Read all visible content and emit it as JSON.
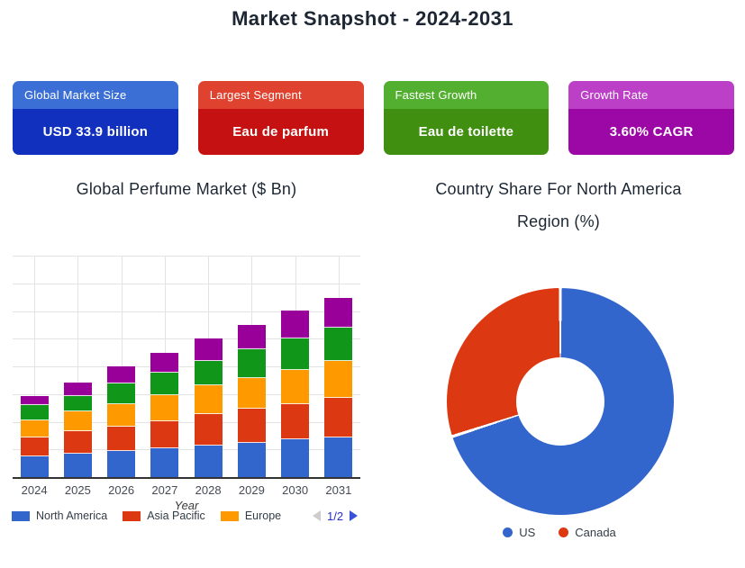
{
  "page": {
    "title": "Market Snapshot - 2024-2031",
    "background": "#FFFFFF"
  },
  "cards": [
    {
      "label": "Global Market Size",
      "value": "USD 33.9 billion",
      "header_color": "#3B6FD6",
      "body_color": "#1130BE"
    },
    {
      "label": "Largest Segment",
      "value": "Eau de parfum",
      "header_color": "#DF4330",
      "body_color": "#C51111"
    },
    {
      "label": "Fastest Growth",
      "value": "Eau de toilette",
      "header_color": "#53AF2F",
      "body_color": "#408F10"
    },
    {
      "label": "Growth Rate",
      "value": "3.60% CAGR",
      "header_color": "#BC3FC7",
      "body_color": "#9C08A6"
    }
  ],
  "chart_data": [
    {
      "type": "bar",
      "stacked": true,
      "title": "Global Perfume Market ($ Bn)",
      "xlabel": "Year",
      "ylabel": "",
      "categories": [
        "2024",
        "2025",
        "2026",
        "2027",
        "2028",
        "2029",
        "2030",
        "2031"
      ],
      "series": [
        {
          "name": "North America",
          "color": "#3366CC",
          "values": [
            3.9,
            4.4,
            4.8,
            5.4,
            5.8,
            6.4,
            7.0,
            7.4
          ]
        },
        {
          "name": "Asia Pacific",
          "color": "#DC3912",
          "values": [
            3.5,
            4.1,
            4.5,
            4.9,
            5.7,
            6.1,
            6.4,
            7.1
          ]
        },
        {
          "name": "Europe",
          "color": "#FF9900",
          "values": [
            3.0,
            3.5,
            4.1,
            4.6,
            5.2,
            5.5,
            6.1,
            6.6
          ]
        },
        {
          "name": "",
          "color": "#109618",
          "values": [
            2.7,
            2.8,
            3.6,
            4.2,
            4.4,
            5.2,
            5.7,
            6.0
          ]
        },
        {
          "name": "",
          "color": "#990099",
          "values": [
            1.7,
            2.5,
            3.1,
            3.5,
            4.1,
            4.5,
            5.0,
            5.5
          ]
        }
      ],
      "ylim": [
        0,
        40
      ],
      "gridline_step": 5,
      "grid": true,
      "y_axis_tick_labels": "none (values estimated from gridlines)",
      "legend_position": "bottom",
      "legend_visible_entries": [
        "North America",
        "Asia Pacific",
        "Europe"
      ],
      "legend_note": "two more series exist on legend page 2 (names not visible)",
      "legend_pagination": {
        "label": "1/2",
        "prev_enabled": false,
        "next_enabled": true,
        "prev_color": "#CDCDCD",
        "next_color": "#3A50DB",
        "text_color": "#2430C6"
      }
    },
    {
      "type": "pie",
      "title": "Country Share For North America Region (%)",
      "labels": [
        "US",
        "Canada"
      ],
      "values": [
        70,
        30
      ],
      "colors": [
        "#3366CC",
        "#DC3912"
      ],
      "donut_hole_ratio": 0.39,
      "start_angle_deg": 0,
      "legend_position": "bottom"
    }
  ]
}
